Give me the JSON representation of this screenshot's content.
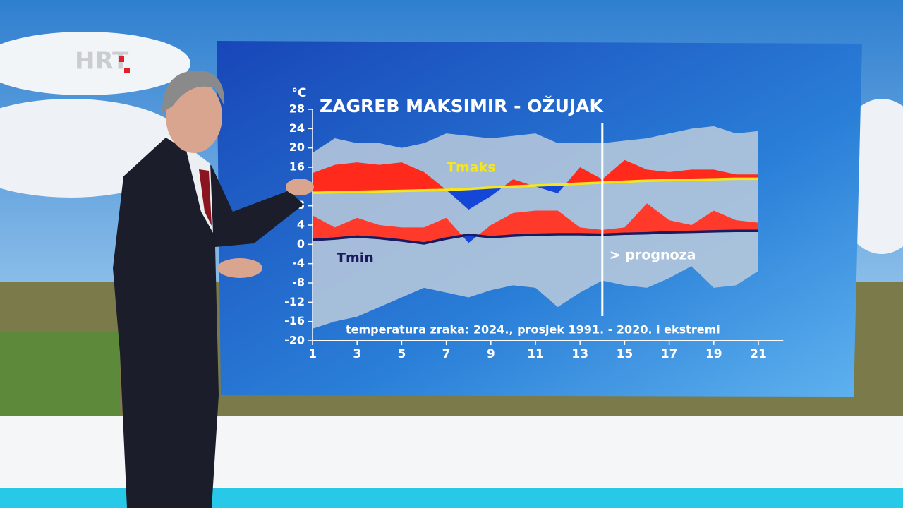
{
  "logo": "HRT",
  "chart_data": {
    "type": "temperature-band",
    "title": "ZAGREB MAKSIMIR - OŽUJAK",
    "ylabel": "°C",
    "caption": "temperatura zraka: 2024., prosjek 1991. - 2020. i ekstremi",
    "forecast_from": 14,
    "forecast_label": "> prognoza",
    "x": [
      1,
      2,
      3,
      4,
      5,
      6,
      7,
      8,
      9,
      10,
      11,
      12,
      13,
      14,
      15,
      16,
      17,
      18,
      19,
      20,
      21
    ],
    "xlim": [
      1,
      21.8
    ],
    "xticks": [
      1,
      3,
      5,
      7,
      9,
      11,
      13,
      15,
      17,
      19,
      21
    ],
    "ylim": [
      -20,
      28
    ],
    "yticks": [
      28,
      24,
      20,
      16,
      12,
      8,
      4,
      0,
      -4,
      -8,
      -12,
      -16,
      -20
    ],
    "band": {
      "color": "#bccbdc",
      "upper": [
        19,
        22,
        21,
        21,
        20,
        21,
        23,
        22.5,
        22,
        22.5,
        23,
        21,
        21,
        21,
        21.5,
        22,
        23,
        24,
        24.5,
        23,
        23.5
      ],
      "lower": [
        -17.5,
        -16,
        -15,
        -13,
        -11,
        -9,
        -10,
        -11,
        -9.5,
        -8.5,
        -9,
        -13,
        -10,
        -7.5,
        -8.5,
        -9,
        -7,
        -4.5,
        -9,
        -8.5,
        -5.5
      ]
    },
    "series": [
      {
        "name": "Tmaks",
        "color": "#f5e61e",
        "above_color": "#ff2a1c",
        "below_color": "#1446d8",
        "values": [
          10.7,
          10.8,
          10.9,
          11,
          11.1,
          11.2,
          11.3,
          11.5,
          11.8,
          12,
          12.2,
          12.4,
          12.6,
          12.8,
          13,
          13.2,
          13.3,
          13.4,
          13.5,
          13.6,
          13.6
        ],
        "actual": [
          14.8,
          16.5,
          17,
          16.5,
          17,
          15,
          11.3,
          7.2,
          10,
          13.5,
          12,
          10.6,
          16,
          13.5,
          17.5,
          15.5,
          15,
          15.5,
          15.5,
          14.5,
          14.5
        ]
      },
      {
        "name": "Tmin",
        "color": "#1a1a5e",
        "above_color": "#ff3a2a",
        "below_color": "#1446d8",
        "values": [
          0.9,
          1.2,
          1.6,
          1.3,
          0.8,
          0.2,
          1.2,
          2,
          1.5,
          1.8,
          2,
          2.1,
          2.1,
          2,
          2.2,
          2.3,
          2.5,
          2.6,
          2.7,
          2.8,
          2.8
        ],
        "actual": [
          6,
          3.5,
          5.5,
          4,
          3.5,
          3.5,
          5.5,
          0.3,
          4,
          6.5,
          7,
          7,
          3.5,
          3,
          3.5,
          8.5,
          5,
          4,
          7,
          5,
          4.5
        ]
      }
    ]
  }
}
